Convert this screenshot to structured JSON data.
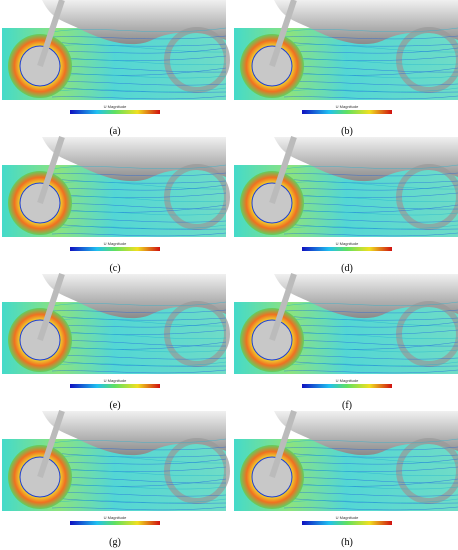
{
  "panels": [
    {
      "label": "(a)",
      "colorbar_title": "U Magnitude"
    },
    {
      "label": "(b)",
      "colorbar_title": "U Magnitude"
    },
    {
      "label": "(c)",
      "colorbar_title": "U Magnitude"
    },
    {
      "label": "(d)",
      "colorbar_title": "U Magnitude"
    },
    {
      "label": "(e)",
      "colorbar_title": "U Magnitude"
    },
    {
      "label": "(f)",
      "colorbar_title": "U Magnitude"
    },
    {
      "label": "(g)",
      "colorbar_title": "U Magnitude"
    },
    {
      "label": "(h)",
      "colorbar_title": "U Magnitude"
    }
  ]
}
